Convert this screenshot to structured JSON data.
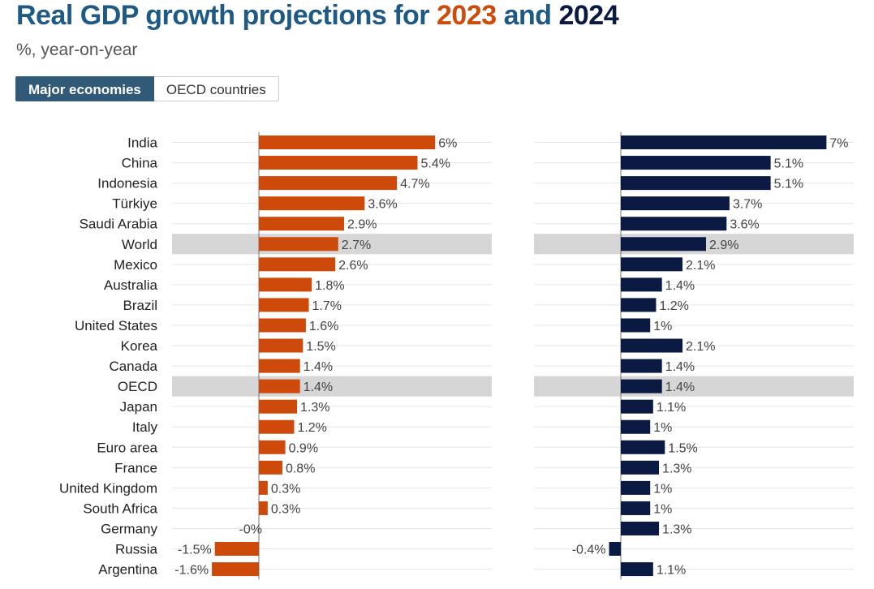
{
  "header": {
    "title_prefix": "Real GDP growth projections for ",
    "year1": "2023",
    "title_and": " and ",
    "year2": "2024",
    "subtitle": "%, year-on-year"
  },
  "tabs": [
    {
      "label": "Major economies",
      "active": true
    },
    {
      "label": "OECD countries",
      "active": false
    }
  ],
  "colors": {
    "series_2023": "#cd4a0a",
    "series_2024": "#0b1a42",
    "highlight_row": "#d6d6d6",
    "title": "#1f5a85"
  },
  "chart_data": {
    "type": "bar",
    "orientation": "horizontal",
    "categories": [
      "India",
      "China",
      "Indonesia",
      "Türkiye",
      "Saudi Arabia",
      "World",
      "Mexico",
      "Australia",
      "Brazil",
      "United States",
      "Korea",
      "Canada",
      "OECD",
      "Japan",
      "Italy",
      "Euro area",
      "France",
      "United Kingdom",
      "South Africa",
      "Germany",
      "Russia",
      "Argentina"
    ],
    "highlighted": [
      "World",
      "OECD"
    ],
    "series": [
      {
        "name": "2023",
        "values": [
          6,
          5.4,
          4.7,
          3.6,
          2.9,
          2.7,
          2.6,
          1.8,
          1.7,
          1.6,
          1.5,
          1.4,
          1.4,
          1.3,
          1.2,
          0.9,
          0.8,
          0.3,
          0.3,
          -0.0,
          -1.5,
          -1.6
        ],
        "labels": [
          "6%",
          "5.4%",
          "4.7%",
          "3.6%",
          "2.9%",
          "2.7%",
          "2.6%",
          "1.8%",
          "1.7%",
          "1.6%",
          "1.5%",
          "1.4%",
          "1.4%",
          "1.3%",
          "1.2%",
          "0.9%",
          "0.8%",
          "0.3%",
          "0.3%",
          "-0%",
          "-1.5%",
          "-1.6%"
        ]
      },
      {
        "name": "2024",
        "values": [
          7,
          5.1,
          5.1,
          3.7,
          3.6,
          2.9,
          2.1,
          1.4,
          1.2,
          1,
          2.1,
          1.4,
          1.4,
          1.1,
          1,
          1.5,
          1.3,
          1,
          1,
          1.3,
          -0.4,
          1.1
        ],
        "labels": [
          "7%",
          "5.1%",
          "5.1%",
          "3.7%",
          "3.6%",
          "2.9%",
          "2.1%",
          "1.4%",
          "1.2%",
          "1%",
          "2.1%",
          "1.4%",
          "1.4%",
          "1.1%",
          "1%",
          "1.5%",
          "1.3%",
          "1%",
          "1%",
          "1.3%",
          "-0.4%",
          "1.1%"
        ]
      }
    ],
    "unit": "%",
    "xlim": [
      -2,
      8
    ]
  }
}
